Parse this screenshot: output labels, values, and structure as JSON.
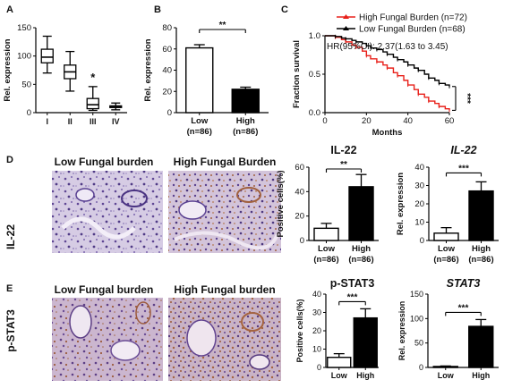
{
  "panels": {
    "A": "A",
    "B": "B",
    "C": "C",
    "D": "D",
    "E": "E"
  },
  "row_labels": {
    "d": "IL-22",
    "e": "p-STAT3"
  },
  "image_titles": {
    "d_left": "Low Fungal burden",
    "d_right": "High Fungal Burden",
    "e_left": "Low Fungal burden",
    "e_right": "High Fungal burden"
  },
  "colors": {
    "low_line": "#000000",
    "high_line": "#e8201a",
    "bar_low": "#ffffff",
    "bar_high": "#000000",
    "tissue_bg": "#cfc3df",
    "tissue_purple": "#6a4f9c",
    "tissue_brown": "#a0603e"
  },
  "chart_data": [
    {
      "id": "A",
      "type": "box",
      "title": "",
      "xlabel": "",
      "ylabel": "Rel. expression",
      "ylim": [
        0,
        150
      ],
      "yticks": [
        0,
        50,
        100,
        150
      ],
      "categories": [
        "I",
        "II",
        "III",
        "IV"
      ],
      "boxes": [
        {
          "min": 70,
          "q1": 88,
          "median": 98,
          "q3": 112,
          "max": 135
        },
        {
          "min": 38,
          "q1": 60,
          "median": 72,
          "q3": 84,
          "max": 108
        },
        {
          "min": 4,
          "q1": 7,
          "median": 14,
          "q3": 25,
          "max": 46
        },
        {
          "min": 5,
          "q1": 9,
          "median": 11,
          "q3": 12,
          "max": 17
        }
      ],
      "annotations": [
        {
          "category": "III",
          "text": "*"
        }
      ]
    },
    {
      "id": "B",
      "type": "bar",
      "title": "",
      "xlabel": "",
      "ylabel": "Rel. expression",
      "ylim": [
        0,
        80
      ],
      "yticks": [
        0,
        20,
        40,
        60,
        80
      ],
      "categories": [
        "Low",
        "High"
      ],
      "sublabels": [
        "(n=86)",
        "(n=86)"
      ],
      "values": [
        61,
        22
      ],
      "errors": [
        3,
        2
      ],
      "significance": "**"
    },
    {
      "id": "C",
      "type": "line",
      "title": "",
      "xlabel": "Months",
      "ylabel": "Fraction survival",
      "xlim": [
        0,
        60
      ],
      "xticks": [
        0,
        20,
        40,
        60
      ],
      "ylim": [
        0,
        1.0
      ],
      "yticks": [
        0,
        0.5,
        1.0
      ],
      "ytick_labels": [
        "0.0",
        "0.5",
        "1.0"
      ],
      "legend": "top-right",
      "annotation": "HR(95%CI): 2.37(1.63 to 3.45)",
      "significance": "***",
      "series": [
        {
          "name": "High Fungal Burden (n=72)",
          "x": [
            0,
            5,
            8,
            10,
            13,
            15,
            18,
            20,
            22,
            25,
            28,
            30,
            33,
            35,
            38,
            40,
            43,
            45,
            48,
            50,
            53,
            55,
            58,
            60
          ],
          "y": [
            1.0,
            0.98,
            0.95,
            0.92,
            0.88,
            0.85,
            0.8,
            0.74,
            0.7,
            0.66,
            0.62,
            0.58,
            0.52,
            0.48,
            0.42,
            0.36,
            0.3,
            0.24,
            0.2,
            0.15,
            0.12,
            0.08,
            0.05,
            0.03
          ]
        },
        {
          "name": "Low Fungal Burden (n=68)",
          "x": [
            0,
            5,
            8,
            10,
            13,
            15,
            18,
            20,
            22,
            25,
            28,
            30,
            33,
            35,
            38,
            40,
            43,
            45,
            48,
            50,
            53,
            55,
            58,
            60
          ],
          "y": [
            1.0,
            0.99,
            0.97,
            0.96,
            0.94,
            0.92,
            0.9,
            0.87,
            0.84,
            0.82,
            0.79,
            0.76,
            0.72,
            0.69,
            0.66,
            0.62,
            0.58,
            0.55,
            0.5,
            0.45,
            0.42,
            0.38,
            0.36,
            0.34
          ]
        }
      ]
    },
    {
      "id": "D1",
      "type": "bar",
      "title": "IL-22",
      "title_italic": false,
      "xlabel": "",
      "ylabel": "Positive cells(%)",
      "ylim": [
        0,
        60
      ],
      "yticks": [
        0,
        20,
        40,
        60
      ],
      "categories": [
        "Low",
        "High"
      ],
      "sublabels": [
        "(n=86)",
        "(n=86)"
      ],
      "values": [
        10,
        44
      ],
      "errors": [
        4,
        10
      ],
      "significance": "**"
    },
    {
      "id": "D2",
      "type": "bar",
      "title": "IL-22",
      "title_italic": true,
      "xlabel": "",
      "ylabel": "Rel. expression",
      "ylim": [
        0,
        40
      ],
      "yticks": [
        0,
        10,
        20,
        30,
        40
      ],
      "categories": [
        "Low",
        "High"
      ],
      "sublabels": [
        "(n=86)",
        "(n=86)"
      ],
      "values": [
        4,
        27
      ],
      "errors": [
        3,
        5
      ],
      "significance": "***"
    },
    {
      "id": "E1",
      "type": "bar",
      "title": "p-STAT3",
      "title_italic": false,
      "xlabel": "",
      "ylabel": "Positive cells(%)",
      "ylim": [
        0,
        40
      ],
      "yticks": [
        0,
        10,
        20,
        30,
        40
      ],
      "categories": [
        "Low",
        "High"
      ],
      "sublabels": [
        "",
        ""
      ],
      "values": [
        5.5,
        27
      ],
      "errors": [
        2,
        5
      ],
      "significance": "***"
    },
    {
      "id": "E2",
      "type": "bar",
      "title": "STAT3",
      "title_italic": true,
      "xlabel": "",
      "ylabel": "Rel. expression",
      "ylim": [
        0,
        150
      ],
      "yticks": [
        0,
        50,
        100,
        150
      ],
      "categories": [
        "Low",
        "High"
      ],
      "sublabels": [
        "",
        ""
      ],
      "values": [
        2,
        84
      ],
      "errors": [
        1,
        14
      ],
      "significance": "***"
    }
  ]
}
